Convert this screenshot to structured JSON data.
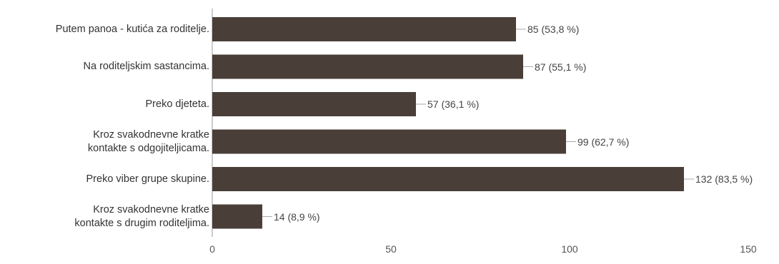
{
  "chart_data": {
    "type": "bar",
    "orientation": "horizontal",
    "categories": [
      "Putem panoa - kutića za roditelje.",
      "Na roditeljskim sastancima.",
      "Preko djeteta.",
      "Kroz svakodnevne kratke\nkontakte s odgojiteljicama.",
      "Preko viber grupe skupine.",
      "Kroz svakodnevne kratke\nkontakte s drugim roditeljima."
    ],
    "values": [
      85,
      87,
      57,
      99,
      132,
      14
    ],
    "value_labels": [
      "85 (53,8 %)",
      "87 (55,1 %)",
      "57 (36,1 %)",
      "99 (62,7 %)",
      "132 (83,5 %)",
      "14 (8,9 %)"
    ],
    "xlim": [
      0,
      150
    ],
    "xticks": [
      0,
      50,
      100,
      150
    ],
    "grid": false,
    "bar_color": "#4a3f38",
    "title": "",
    "xlabel": "",
    "ylabel": ""
  }
}
